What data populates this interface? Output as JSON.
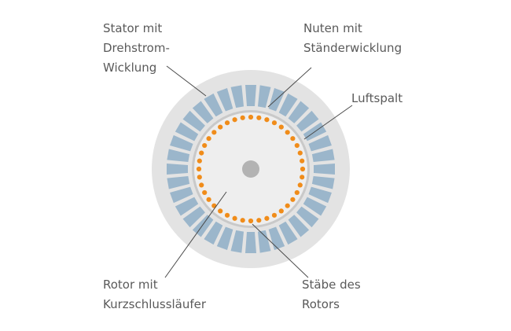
{
  "labels": {
    "stator": {
      "line1": "Stator mit",
      "line2": "Drehstrom-",
      "line3": "Wicklung"
    },
    "nuten": {
      "line1": "Nuten mit",
      "line2": "Ständerwicklung"
    },
    "luftspalt": {
      "line1": "Luftspalt"
    },
    "rotor": {
      "line1": "Rotor mit",
      "line2": "Kurzschlussläufer"
    },
    "staebe": {
      "line1": "Stäbe des",
      "line2": "Rotors"
    }
  },
  "colors": {
    "stator_fill": "#e3e3e3",
    "slot_fill": "#9bb6cb",
    "rotor_fill": "#eeeeee",
    "rotor_edge": "#c9c9c9",
    "bar_dot": "#f08c1a",
    "shaft": "#b3b3b3",
    "leader": "#4a4a4a",
    "text": "#5a5a5a"
  },
  "diagram": {
    "slot_count": 36,
    "bar_count": 40
  }
}
